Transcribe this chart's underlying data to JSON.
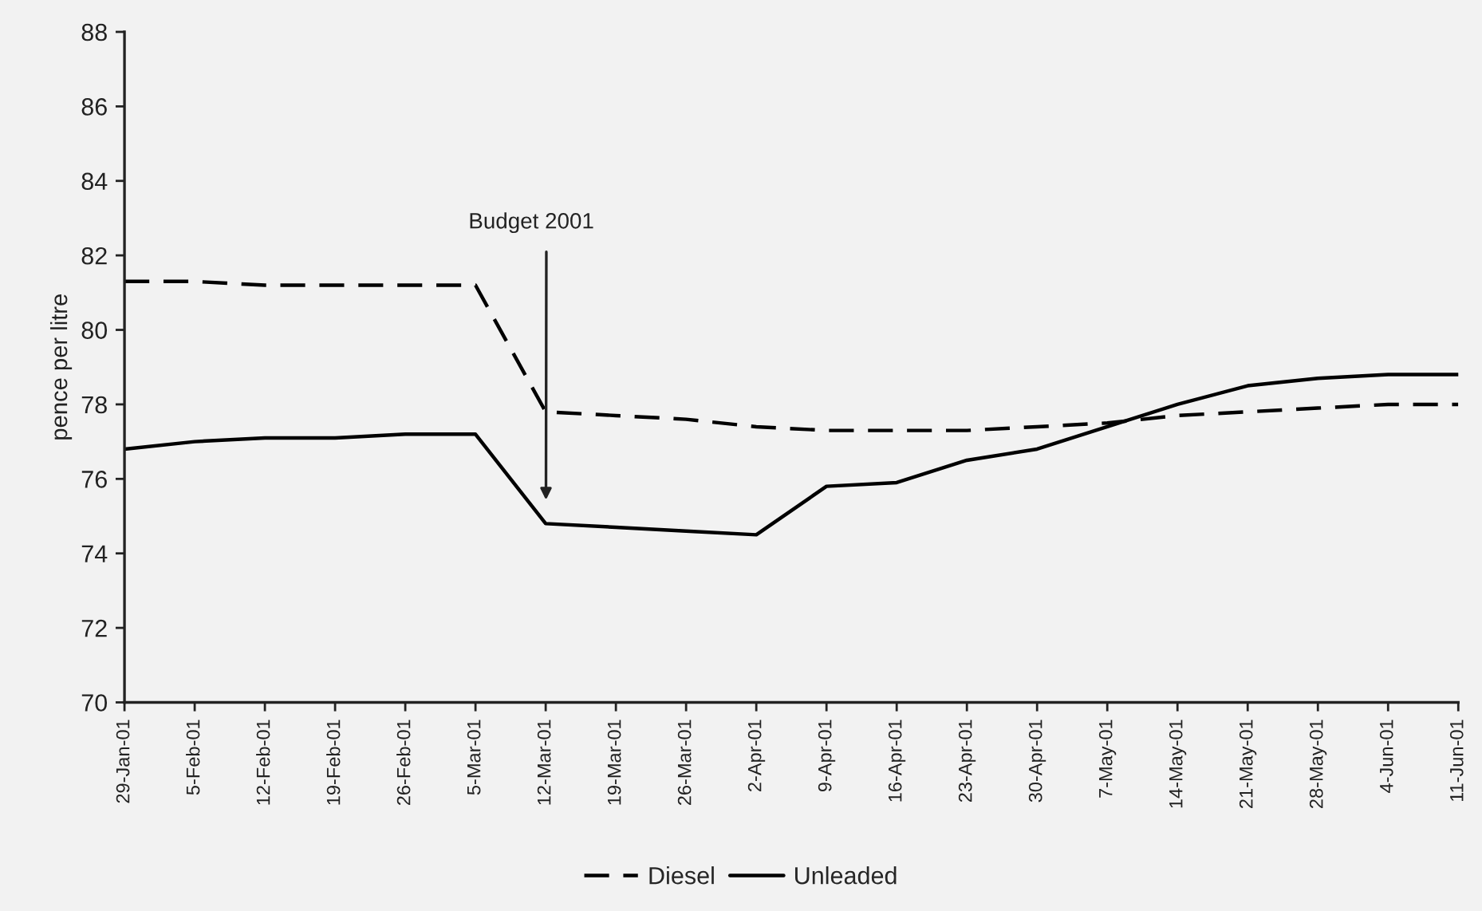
{
  "chart_data": {
    "type": "line",
    "ylabel": "pence per litre",
    "categories": [
      "29-Jan-01",
      "5-Feb-01",
      "12-Feb-01",
      "19-Feb-01",
      "26-Feb-01",
      "5-Mar-01",
      "12-Mar-01",
      "19-Mar-01",
      "26-Mar-01",
      "2-Apr-01",
      "9-Apr-01",
      "16-Apr-01",
      "23-Apr-01",
      "30-Apr-01",
      "7-May-01",
      "14-May-01",
      "21-May-01",
      "28-May-01",
      "4-Jun-01",
      "11-Jun-01"
    ],
    "series": [
      {
        "name": "Diesel",
        "color": "#000000",
        "line_style": "dashed",
        "values": [
          81.3,
          81.3,
          81.2,
          81.2,
          81.2,
          81.2,
          77.8,
          77.7,
          77.6,
          77.4,
          77.3,
          77.3,
          77.3,
          77.4,
          77.5,
          77.7,
          77.8,
          77.9,
          78.0,
          78.0
        ]
      },
      {
        "name": "Unleaded",
        "color": "#000000",
        "line_style": "solid",
        "values": [
          76.8,
          77.0,
          77.1,
          77.1,
          77.2,
          77.2,
          74.8,
          74.7,
          74.6,
          74.5,
          75.8,
          75.9,
          76.5,
          76.8,
          77.4,
          78.0,
          78.5,
          78.7,
          78.8,
          78.8
        ]
      }
    ],
    "ylim": [
      70,
      88
    ],
    "yticks": [
      70,
      72,
      74,
      76,
      78,
      80,
      82,
      84,
      86,
      88
    ],
    "legend": "bottom",
    "annotations": [
      "Budget 2001"
    ]
  }
}
